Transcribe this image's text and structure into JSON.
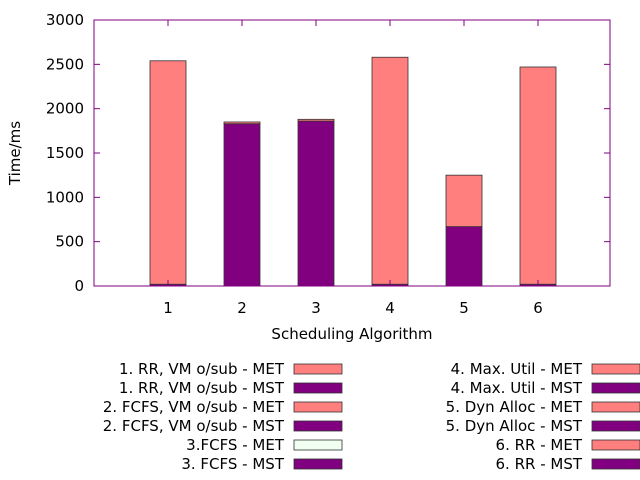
{
  "chart_data": {
    "type": "bar",
    "stacked": true,
    "xlabel": "Scheduling Algorithm",
    "ylabel": "Time/ms",
    "ylim": [
      0,
      3000
    ],
    "yticks": [
      0,
      500,
      1000,
      1500,
      2000,
      2500,
      3000
    ],
    "categories": [
      "1",
      "2",
      "3",
      "4",
      "5",
      "6"
    ],
    "grid": false,
    "legend_position": "bottom",
    "series": [
      {
        "role": "MST",
        "color": "#800080",
        "values": [
          20,
          1830,
          1860,
          20,
          670,
          20
        ]
      },
      {
        "role": "MET",
        "color": "#ff7f7f",
        "values": [
          2520,
          20,
          20,
          2560,
          580,
          2450
        ]
      }
    ],
    "legend": [
      {
        "label": "1. RR, VM o/sub - MET",
        "color": "#ff7f7f"
      },
      {
        "label": "1. RR, VM o/sub - MST",
        "color": "#800080"
      },
      {
        "label": "2. FCFS, VM o/sub - MET",
        "color": "#ff7f7f"
      },
      {
        "label": "2. FCFS, VM o/sub - MST",
        "color": "#800080"
      },
      {
        "label": "3.FCFS - MET",
        "color": "#f0fff0"
      },
      {
        "label": "3. FCFS - MST",
        "color": "#800080"
      },
      {
        "label": "4. Max. Util - MET",
        "color": "#ff7f7f"
      },
      {
        "label": "4. Max. Util - MST",
        "color": "#800080"
      },
      {
        "label": "5. Dyn Alloc - MET",
        "color": "#ff7f7f"
      },
      {
        "label": "5. Dyn Alloc - MST",
        "color": "#800080"
      },
      {
        "label": "6. RR - MET",
        "color": "#ff7f7f"
      },
      {
        "label": "6. RR - MST",
        "color": "#800080"
      }
    ],
    "axis_color": "#800080"
  }
}
